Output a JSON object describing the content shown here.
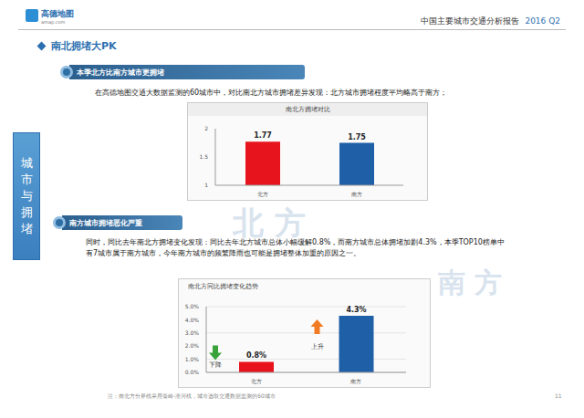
{
  "header": {
    "logo": "高德地图",
    "logo_sub": "amap.com",
    "report_title": "中国主要城市交通分析报告",
    "period": "2016 Q2"
  },
  "page_title": "南北拥堵大PK",
  "side_label": "城市与拥堵",
  "sections": [
    {
      "heading": "本季北方比南方城市更拥堵",
      "text": "在高德地图交通大数据监测的60城市中，对比南北方城市拥堵差异发现：北方城市拥堵程度平均略高于南方；"
    },
    {
      "heading": "南方城市拥堵恶化严重",
      "text": "同时，同比去年南北方拥堵变化发现：同比去年北方城市总体小幅缓解0.8%，而南方城市总体拥堵加剧4.3%，本季TOP10榜单中有7城市属于南方城市，今年南方城市的频繁降雨也可能是拥堵整体加重的原因之一。"
    }
  ],
  "map_labels": [
    "北 方",
    "南 方"
  ],
  "footnote": "注：南北方分界线采用秦岭-淮河线，城市选取交通数据监测的60城市",
  "page_number": "11",
  "chart_data": [
    {
      "type": "bar",
      "title": "南北方拥堵对比",
      "categories": [
        "北方",
        "南方"
      ],
      "values": [
        1.77,
        1.75
      ],
      "colors": [
        "#e8141d",
        "#1f5fa8"
      ],
      "ylim": [
        1,
        2
      ],
      "yticks": [
        1,
        1.5,
        2
      ],
      "data_labels": true,
      "grid": false
    },
    {
      "type": "bar",
      "title": "南北方同比拥堵变化趋势",
      "categories": [
        "北方",
        "南方"
      ],
      "values": [
        0.8,
        4.3
      ],
      "value_labels": [
        "0.8%",
        "4.3%"
      ],
      "colors": [
        "#e8141d",
        "#1f5fa8"
      ],
      "ylim": [
        0,
        5
      ],
      "yticks": [
        {
          "value": 0,
          "label": "0.0%"
        },
        {
          "value": 1,
          "label": "1.0%"
        },
        {
          "value": 2,
          "label": "2.0%"
        },
        {
          "value": 3,
          "label": "3.0%"
        },
        {
          "value": 4,
          "label": "4.0%"
        },
        {
          "value": 5,
          "label": "5.0%"
        }
      ],
      "data_labels": true,
      "grid": true,
      "annotations": [
        {
          "category": "北方",
          "text": "下降"
        },
        {
          "category": "南方",
          "text": "上升"
        }
      ]
    }
  ]
}
